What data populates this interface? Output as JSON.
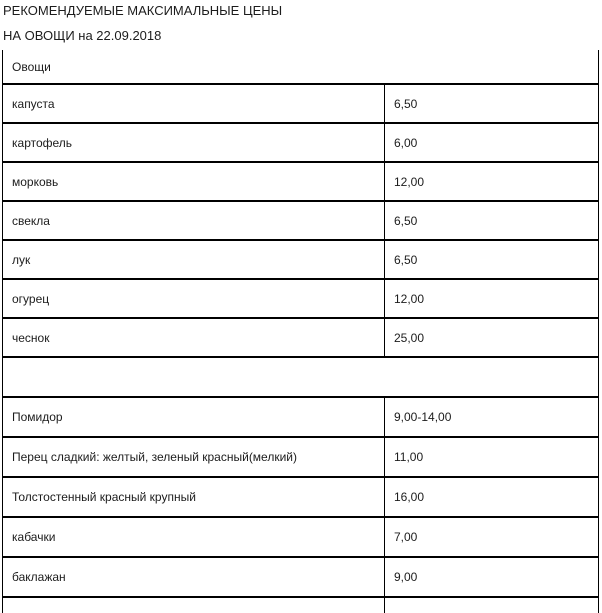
{
  "header": {
    "line1": "РЕКОМЕНДУЕМЫЕ МАКСИМАЛЬНЫЕ ЦЕНЫ",
    "line2": "НА ОВОЩИ на 22.09.2018"
  },
  "table": {
    "rows": [
      {
        "type": "section",
        "name": "Овощи"
      },
      {
        "type": "item",
        "name": "капуста",
        "price": "6,50"
      },
      {
        "type": "item",
        "name": "картофель",
        "price": "6,00"
      },
      {
        "type": "item",
        "name": "морковь",
        "price": "12,00"
      },
      {
        "type": "item",
        "name": "свекла",
        "price": "6,50"
      },
      {
        "type": "item",
        "name": "лук",
        "price": "6,50"
      },
      {
        "type": "item",
        "name": "огурец",
        "price": "12,00"
      },
      {
        "type": "item",
        "name": "чеснок",
        "price": "25,00"
      },
      {
        "type": "spacer"
      },
      {
        "type": "item",
        "name": "Помидор",
        "price": "9,00-14,00"
      },
      {
        "type": "item",
        "name": "Перец сладкий: желтый, зеленый красный(мелкий)",
        "price": "11,00"
      },
      {
        "type": "item",
        "name": "Толстостенный красный крупный",
        "price": "16,00"
      },
      {
        "type": "item",
        "name": "кабачки",
        "price": "7,00"
      },
      {
        "type": "item",
        "name": "баклажан",
        "price": "9,00"
      },
      {
        "type": "stub"
      }
    ]
  },
  "colors": {
    "text": "#1c1c1c",
    "border": "#000000",
    "background": "#ffffff"
  }
}
